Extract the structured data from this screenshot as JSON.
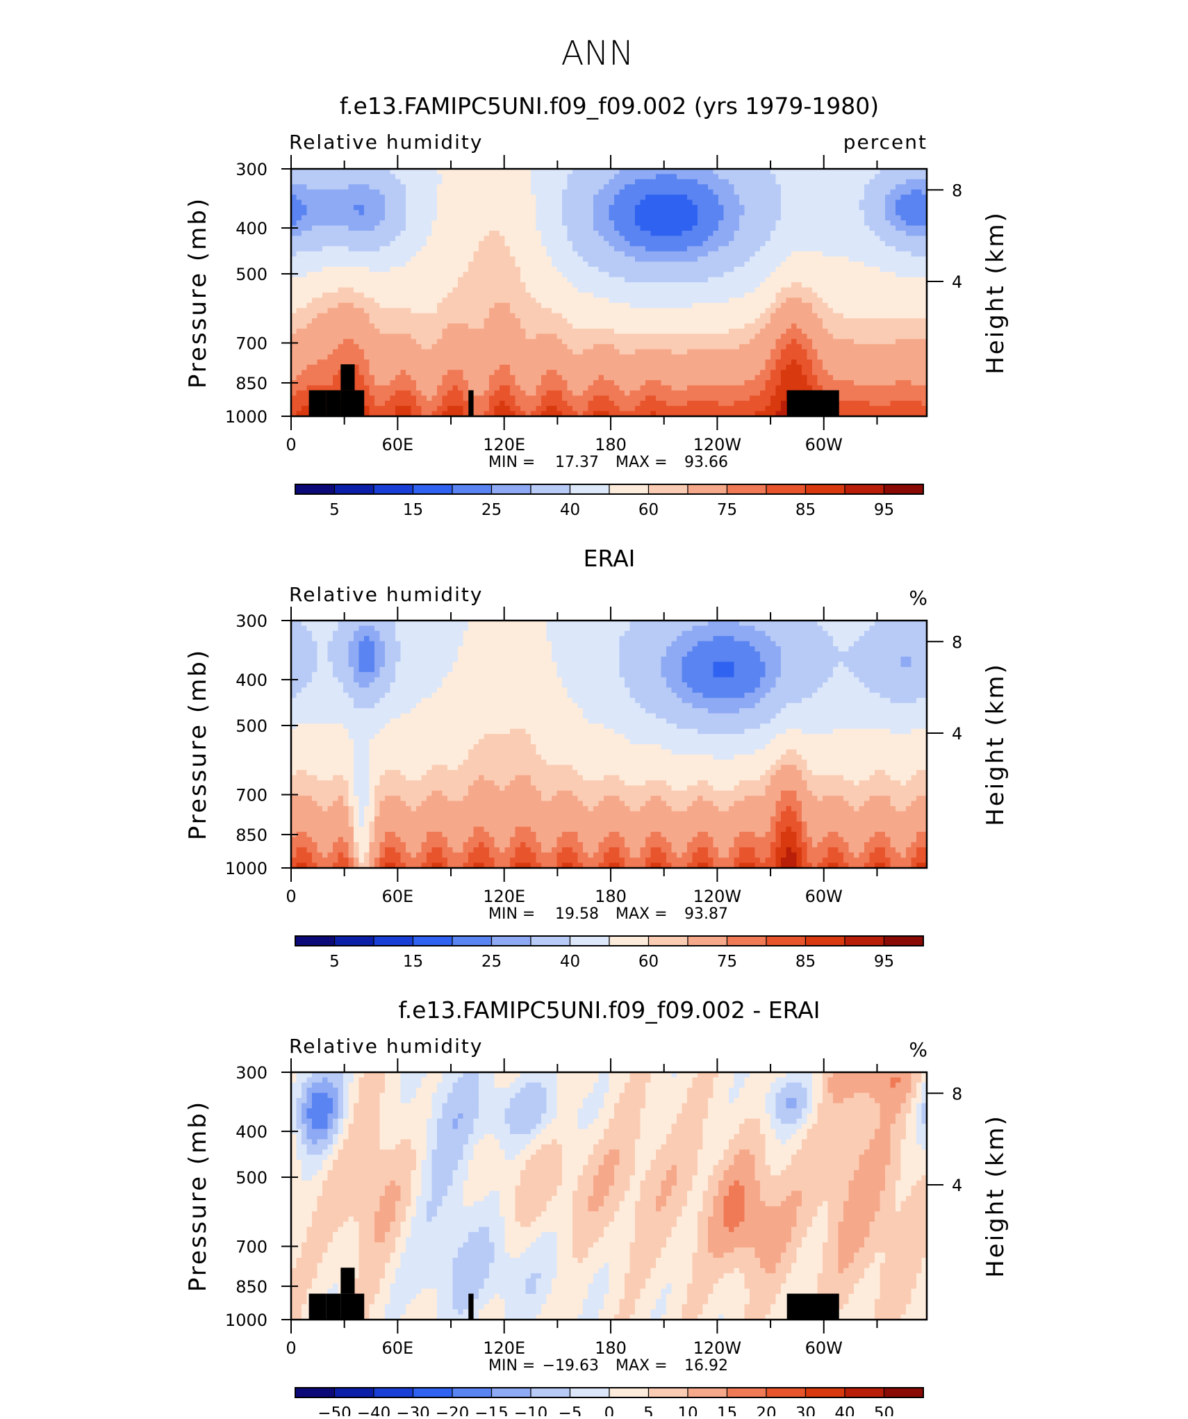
{
  "page_title": "ANN",
  "colors": {
    "rh_palette": [
      "#0c0a78",
      "#0b1fa8",
      "#1a3fd6",
      "#2f62f0",
      "#5a84f2",
      "#8eaaf4",
      "#b8cbf6",
      "#dce7fa",
      "#fdecdc",
      "#fbccb4",
      "#f6a88a",
      "#f07a56",
      "#e8542c",
      "#d8390f",
      "#b81e08",
      "#8a0b05"
    ],
    "diff_palette": [
      "#0c0a78",
      "#0b1fa8",
      "#1a3fd6",
      "#2f62f0",
      "#5a84f2",
      "#8eaaf4",
      "#b8cbf6",
      "#dce7fa",
      "#fdecdc",
      "#fbccb4",
      "#f6a88a",
      "#f07a56",
      "#e8542c",
      "#d8390f",
      "#b81e08",
      "#8a0b05"
    ],
    "land_mask": "#000000"
  },
  "chart_data": [
    {
      "type": "heatmap",
      "title": "f.e13.FAMIPC5UNI.f09_f09.002 (yrs 1979-1980)",
      "variable": "Relative humidity",
      "units": "percent",
      "ylabel": "Pressure (mb)",
      "ylabel_right": "Height (km)",
      "yticks": [
        "300",
        "400",
        "500",
        "700",
        "850",
        "1000"
      ],
      "yticks_right": [
        "8",
        "4"
      ],
      "xticks": [
        "0",
        "60E",
        "120E",
        "180",
        "120W",
        "60W"
      ],
      "ylim": [
        1000,
        300
      ],
      "stats": {
        "min_label": "MIN =",
        "min": "17.37",
        "max_label": "MAX =",
        "max": "93.66"
      },
      "colorbar_labels": [
        "5",
        "15",
        "25",
        "40",
        "60",
        "75",
        "85",
        "95"
      ],
      "land_mask": true,
      "zmin": 17.37,
      "zmax": 93.66
    },
    {
      "type": "heatmap",
      "title": "ERAI",
      "variable": "Relative humidity",
      "units": "%",
      "ylabel": "Pressure (mb)",
      "ylabel_right": "Height (km)",
      "yticks": [
        "300",
        "400",
        "500",
        "700",
        "850",
        "1000"
      ],
      "yticks_right": [
        "8",
        "4"
      ],
      "xticks": [
        "0",
        "60E",
        "120E",
        "180",
        "120W",
        "60W"
      ],
      "ylim": [
        1000,
        300
      ],
      "stats": {
        "min_label": "MIN =",
        "min": "19.58",
        "max_label": "MAX =",
        "max": "93.87"
      },
      "colorbar_labels": [
        "5",
        "15",
        "25",
        "40",
        "60",
        "75",
        "85",
        "95"
      ],
      "land_mask": false,
      "zmin": 19.58,
      "zmax": 93.87
    },
    {
      "type": "heatmap",
      "title": "f.e13.FAMIPC5UNI.f09_f09.002 - ERAI",
      "variable": "Relative humidity",
      "units": "%",
      "ylabel": "Pressure (mb)",
      "ylabel_right": "Height (km)",
      "yticks": [
        "300",
        "400",
        "500",
        "700",
        "850",
        "1000"
      ],
      "yticks_right": [
        "8",
        "4"
      ],
      "xticks": [
        "0",
        "60E",
        "120E",
        "180",
        "120W",
        "60W"
      ],
      "ylim": [
        1000,
        300
      ],
      "stats": {
        "min_label": "MIN =",
        "min": "−19.63",
        "max_label": "MAX =",
        "max": "16.92"
      },
      "colorbar_labels": [
        "−50",
        "−40",
        "−30",
        "−20",
        "−15",
        "−10",
        "−5",
        "0",
        "5",
        "10",
        "15",
        "20",
        "30",
        "40",
        "50"
      ],
      "land_mask": true,
      "zmin": -19.63,
      "zmax": 16.92
    }
  ]
}
